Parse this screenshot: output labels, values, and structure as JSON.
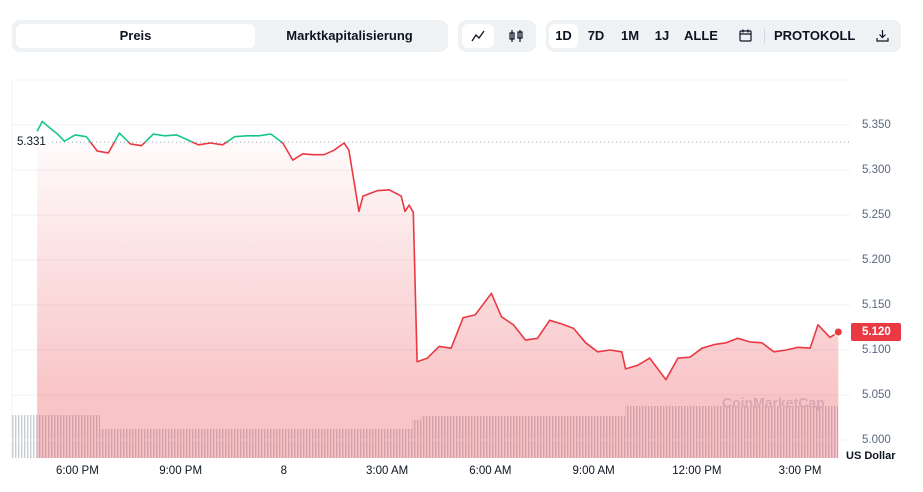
{
  "controls": {
    "metric_tabs": [
      "Preis",
      "Marktkapitalisierung"
    ],
    "ranges": [
      "1D",
      "7D",
      "1M",
      "1J",
      "ALLE"
    ],
    "log_button": "PROTOKOLL"
  },
  "chart_data": {
    "type": "line",
    "x": [
      16.83,
      16.98,
      17.16,
      17.45,
      17.62,
      17.94,
      18.26,
      18.58,
      18.9,
      19.22,
      19.54,
      19.86,
      20.21,
      20.53,
      20.88,
      21.17,
      21.52,
      21.87,
      22.22,
      22.57,
      22.92,
      23.27,
      23.62,
      23.97,
      24.26,
      24.55,
      24.84,
      25.17,
      25.46,
      25.75,
      25.89,
      26.18,
      26.3,
      26.71,
      27.06,
      27.41,
      27.52,
      27.64,
      27.76,
      27.87,
      28.17,
      28.51,
      28.86,
      29.21,
      29.56,
      30.03,
      30.32,
      30.67,
      31.02,
      31.37,
      31.72,
      32.07,
      32.42,
      32.77,
      33.12,
      33.47,
      33.82,
      33.93,
      34.28,
      34.63,
      35.1,
      35.45,
      35.8,
      36.15,
      36.5,
      36.85,
      37.19,
      37.54,
      37.89,
      38.24,
      38.59,
      38.94,
      39.29,
      39.52,
      39.87,
      40.11
    ],
    "values": [
      5.343,
      5.354,
      5.348,
      5.339,
      5.332,
      5.339,
      5.337,
      5.321,
      5.319,
      5.341,
      5.329,
      5.327,
      5.34,
      5.338,
      5.339,
      5.334,
      5.328,
      5.33,
      5.328,
      5.337,
      5.338,
      5.338,
      5.34,
      5.33,
      5.311,
      5.318,
      5.317,
      5.317,
      5.322,
      5.33,
      5.322,
      5.254,
      5.271,
      5.277,
      5.278,
      5.271,
      5.254,
      5.261,
      5.253,
      5.087,
      5.091,
      5.104,
      5.102,
      5.136,
      5.139,
      5.163,
      5.137,
      5.128,
      5.111,
      5.113,
      5.133,
      5.129,
      5.124,
      5.108,
      5.098,
      5.1,
      5.098,
      5.079,
      5.083,
      5.091,
      5.067,
      5.091,
      5.092,
      5.102,
      5.106,
      5.108,
      5.113,
      5.109,
      5.108,
      5.098,
      5.1,
      5.103,
      5.102,
      5.128,
      5.114,
      5.12
    ],
    "colors": {
      "up": "#16c784",
      "down": "#ea3943"
    },
    "reference_price": {
      "value": 5.331,
      "label": "5.331"
    },
    "current_price": {
      "value": 5.12,
      "label": "5.120"
    },
    "xlim": [
      16.1,
      40.45
    ],
    "xticks": [
      {
        "value": 18,
        "label": "6:00 PM"
      },
      {
        "value": 21,
        "label": "9:00 PM"
      },
      {
        "value": 24,
        "label": "8"
      },
      {
        "value": 27,
        "label": "3:00 AM"
      },
      {
        "value": 30,
        "label": "6:00 AM"
      },
      {
        "value": 33,
        "label": "9:00 AM"
      },
      {
        "value": 36,
        "label": "12:00 PM"
      },
      {
        "value": 39,
        "label": "3:00 PM"
      }
    ],
    "ylim": [
      4.98,
      5.4
    ],
    "yticks": [
      {
        "value": 5,
        "label": "5.000"
      },
      {
        "value": 5.05,
        "label": "5.050"
      },
      {
        "value": 5.1,
        "label": "5.100"
      },
      {
        "value": 5.15,
        "label": "5.150"
      },
      {
        "value": 5.2,
        "label": "5.200"
      },
      {
        "value": 5.25,
        "label": "5.250"
      },
      {
        "value": 5.3,
        "label": "5.300"
      },
      {
        "value": 5.35,
        "label": "5.350"
      }
    ],
    "grid": true,
    "y_axis_unit": "US Dollar",
    "watermark": "CoinMarketCap"
  }
}
